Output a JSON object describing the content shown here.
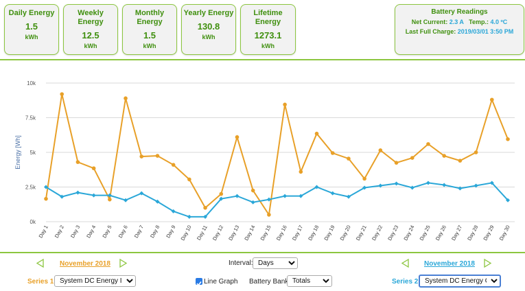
{
  "cards": [
    {
      "title": "Daily Energy",
      "value": "1.5",
      "unit": "kWh"
    },
    {
      "title": "Weekly Energy",
      "value": "12.5",
      "unit": "kWh"
    },
    {
      "title": "Monthly Energy",
      "value": "1.5",
      "unit": "kWh"
    },
    {
      "title": "Yearly Energy",
      "value": "130.8",
      "unit": "kWh"
    },
    {
      "title": "Lifetime Energy",
      "value": "1273.1",
      "unit": "kWh"
    }
  ],
  "battery": {
    "title": "Battery Readings",
    "net_current_label": "Net Current:",
    "net_current_value": "2.3 A",
    "temp_label": "Temp.:",
    "temp_value": "4.0 ºC",
    "last_charge_label": "Last Full Charge:",
    "last_charge_value": "2019/03/01 3:50 PM"
  },
  "controls": {
    "month_left": "November 2018",
    "month_right": "November 2018",
    "interval_label": "Interval:",
    "interval_value": "Days",
    "series1_label": "Series 1:",
    "series1_value": "System DC Energy In",
    "line_graph_label": "Line Graph",
    "battery_bank_label": "Battery Bank:",
    "battery_bank_value": "Totals",
    "series2_label": "Series 2:",
    "series2_value": "System DC Energy Out"
  },
  "colors": {
    "accent_green": "#8cc63f",
    "text_green": "#3f8f0e",
    "blue": "#2aa7d8",
    "orange": "#e8a028",
    "orange_link": "#e8a028"
  },
  "chart_data": {
    "type": "line",
    "ylabel": "Energy [Wh]",
    "ylim": [
      0,
      10000
    ],
    "yticks": [
      {
        "v": 0,
        "label": "0k"
      },
      {
        "v": 2500,
        "label": "2.5k"
      },
      {
        "v": 5000,
        "label": "5k"
      },
      {
        "v": 7500,
        "label": "7.5k"
      },
      {
        "v": 10000,
        "label": "10k"
      }
    ],
    "categories": [
      "Day 1",
      "Day 2",
      "Day 3",
      "Day 4",
      "Day 5",
      "Day 6",
      "Day 7",
      "Day 8",
      "Day 9",
      "Day 10",
      "Day 11",
      "Day 12",
      "Day 13",
      "Day 14",
      "Day 15",
      "Day 16",
      "Day 17",
      "Day 18",
      "Day 19",
      "Day 20",
      "Day 21",
      "Day 22",
      "Day 23",
      "Day 24",
      "Day 25",
      "Day 26",
      "Day 27",
      "Day 28",
      "Day 29",
      "Day 30"
    ],
    "series": [
      {
        "color": "#e8a028",
        "marker": "circle",
        "values": [
          1650,
          9200,
          4300,
          3850,
          1600,
          8900,
          4700,
          4750,
          4100,
          3050,
          1000,
          2000,
          6100,
          2250,
          500,
          8450,
          3600,
          6350,
          4950,
          4550,
          3100,
          5150,
          4250,
          4600,
          5600,
          4750,
          4400,
          5000,
          8800,
          5950
        ]
      },
      {
        "color": "#2aa7d8",
        "marker": "diamond",
        "values": [
          2500,
          1800,
          2100,
          1900,
          1900,
          1550,
          2050,
          1450,
          750,
          350,
          350,
          1650,
          1850,
          1400,
          1600,
          1850,
          1850,
          2500,
          2050,
          1800,
          2450,
          2600,
          2750,
          2450,
          2800,
          2650,
          2400,
          2600,
          2800,
          1550
        ]
      }
    ]
  }
}
